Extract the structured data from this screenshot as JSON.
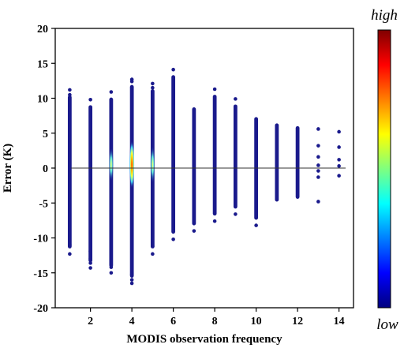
{
  "chart_data": {
    "type": "scatter",
    "title": "",
    "xlabel": "MODIS observation frequency",
    "ylabel": "Error (K)",
    "xlim": [
      0.3,
      14.7
    ],
    "ylim": [
      -20,
      20
    ],
    "x_ticks": [
      2,
      4,
      6,
      8,
      10,
      12,
      14
    ],
    "y_ticks": [
      -20,
      -15,
      -10,
      -5,
      0,
      5,
      10,
      15,
      20
    ],
    "reference_line_y": 0,
    "grid": false,
    "legend": "none",
    "colorbar": {
      "label_high": "high",
      "label_low": "low",
      "colormap": "jet",
      "stops": [
        "#00007f",
        "#0000ff",
        "#007fff",
        "#00ffff",
        "#7fff7f",
        "#ffff00",
        "#ff7f00",
        "#ff0000",
        "#7f0000"
      ]
    },
    "point_color": "#1a1a8c",
    "columns": [
      {
        "x": 1,
        "y_min": -12.3,
        "y_max": 11.2,
        "extra_points": [
          -12.3,
          -11.0,
          10.5,
          11.2
        ],
        "density_peak": 0.0
      },
      {
        "x": 2,
        "y_min": -14.3,
        "y_max": 9.8,
        "extra_points": [
          -14.3,
          -13.6,
          -13.0,
          -11.9,
          9.8
        ],
        "density_peak": 0.0
      },
      {
        "x": 3,
        "y_min": -15.0,
        "y_max": 10.9,
        "extra_points": [
          -15.0,
          -14.2,
          10.9
        ],
        "density_peak": 0.15
      },
      {
        "x": 4,
        "y_min": -16.5,
        "y_max": 12.7,
        "extra_points": [
          -16.5,
          -16.0,
          -15.2,
          12.7,
          12.4
        ],
        "density_peak": 1.0
      },
      {
        "x": 5,
        "y_min": -12.3,
        "y_max": 12.1,
        "extra_points": [
          -12.3,
          -11.2,
          12.1,
          11.5
        ],
        "density_peak": 0.25
      },
      {
        "x": 6,
        "y_min": -10.2,
        "y_max": 14.1,
        "extra_points": [
          -10.2,
          14.1
        ],
        "density_peak": 0.0
      },
      {
        "x": 7,
        "y_min": -9.0,
        "y_max": 9.5,
        "extra_points": [
          -9.0
        ],
        "density_peak": 0.0
      },
      {
        "x": 8,
        "y_min": -7.6,
        "y_max": 11.3,
        "extra_points": [
          -7.6,
          11.3
        ],
        "density_peak": 0.0
      },
      {
        "x": 9,
        "y_min": -6.6,
        "y_max": 9.9,
        "extra_points": [
          -6.6,
          9.9
        ],
        "density_peak": 0.0
      },
      {
        "x": 10,
        "y_min": -8.2,
        "y_max": 8.1,
        "extra_points": [
          -8.2
        ],
        "density_peak": 0.0
      },
      {
        "x": 11,
        "y_min": -5.6,
        "y_max": 7.2,
        "extra_points": [],
        "density_peak": 0.0
      },
      {
        "x": 12,
        "y_min": -5.2,
        "y_max": 6.8,
        "extra_points": [],
        "density_peak": 0.0
      },
      {
        "x": 13,
        "y_min": -4.8,
        "y_max": 5.6,
        "extra_points": [
          5.6,
          3.2,
          1.6,
          0.4,
          -0.4,
          -1.3,
          -4.8
        ],
        "density_peak": 0.0
      },
      {
        "x": 14,
        "y_min": -1.1,
        "y_max": 5.2,
        "extra_points": [
          5.2,
          3.0,
          1.2,
          0.3,
          -1.1
        ],
        "density_peak": 0.0
      }
    ]
  }
}
